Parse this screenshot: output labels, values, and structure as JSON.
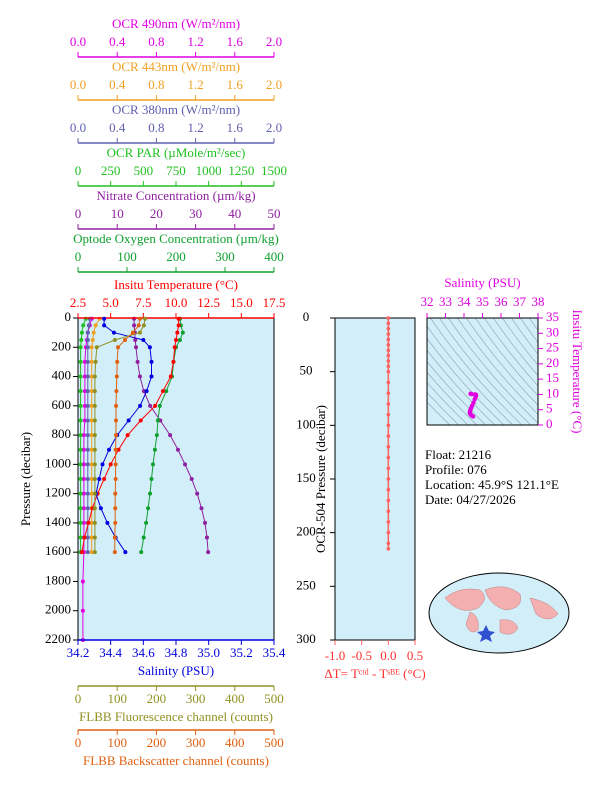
{
  "chart_data": [
    {
      "type": "line",
      "ylabel": "Pressure (decibar)",
      "ylim": [
        0,
        2200
      ],
      "yticks": [
        0,
        200,
        400,
        600,
        800,
        1000,
        1200,
        1400,
        1600,
        1800,
        2000,
        2200
      ],
      "y": [
        5,
        50,
        100,
        150,
        200,
        300,
        400,
        500,
        600,
        700,
        800,
        900,
        1000,
        1100,
        1200,
        1300,
        1400,
        1500,
        1600,
        1800,
        2000,
        2200
      ],
      "series": [
        {
          "label": "OCR 490nm (W/m²/nm)",
          "side": "top",
          "color": "#e000e0",
          "xlim": [
            0,
            2
          ],
          "xticks": [
            {
              "value": 0,
              "label": "0.0"
            },
            0.4,
            0.8,
            1.2,
            1.6,
            {
              "value": 2,
              "label": "2.0"
            }
          ],
          "values": [
            0.14,
            0.12,
            0.1,
            0.09,
            0.08,
            0.07,
            0.07,
            0.07,
            0.07,
            0.07,
            0.06,
            0.06,
            0.06,
            0.06,
            0.06,
            0.06,
            0.06,
            0.06,
            0.06,
            0.05,
            0.05,
            0.05
          ]
        },
        {
          "label": "OCR 443nm (W/m²/nm)",
          "side": "top",
          "color": "#f0a020",
          "xlim": [
            0,
            2
          ],
          "xticks": [
            {
              "value": 0,
              "label": "0.0"
            },
            0.4,
            0.8,
            1.2,
            1.6,
            {
              "value": 2,
              "label": "2.0"
            }
          ],
          "values": [
            0.22,
            0.18,
            0.16,
            0.15,
            0.14,
            0.14,
            0.14,
            0.14,
            0.14,
            0.14,
            0.14,
            0.14,
            0.14,
            0.14,
            0.14,
            0.14,
            0.14,
            0.14,
            0.14,
            null,
            null,
            null
          ]
        },
        {
          "label": "OCR 380nm (W/m²/nm)",
          "side": "top",
          "color": "#6060b0",
          "xlim": [
            0,
            2
          ],
          "xticks": [
            {
              "value": 0,
              "label": "0.0"
            },
            0.4,
            0.8,
            1.2,
            1.6,
            {
              "value": 2,
              "label": "2.0"
            }
          ],
          "values": [
            0.12,
            0.11,
            0.1,
            0.1,
            0.1,
            0.1,
            0.1,
            0.1,
            0.1,
            0.1,
            0.1,
            0.1,
            0.1,
            0.1,
            0.1,
            0.1,
            0.1,
            0.1,
            0.1,
            null,
            null,
            null
          ]
        },
        {
          "label": "OCR PAR (µMole/m²/sec)",
          "side": "top",
          "color": "#20c020",
          "xlim": [
            0,
            1500
          ],
          "xticks": [
            0,
            250,
            500,
            750,
            1000,
            1250,
            1500
          ],
          "values": [
            60,
            40,
            30,
            25,
            20,
            20,
            20,
            20,
            20,
            20,
            20,
            20,
            20,
            20,
            20,
            20,
            20,
            20,
            20,
            null,
            null,
            null
          ]
        },
        {
          "label": "Nitrate Concentration (µm/kg)",
          "side": "top",
          "color": "#9020a0",
          "xlim": [
            0,
            50
          ],
          "xticks": [
            0,
            10,
            20,
            30,
            40,
            50
          ],
          "values": [
            14.3,
            14.3,
            14.5,
            14.6,
            14.8,
            15.2,
            15.8,
            16.8,
            18.4,
            21,
            23.5,
            25.5,
            27.3,
            29,
            30.4,
            31.5,
            32.4,
            32.9,
            33.2,
            null,
            null,
            null
          ]
        },
        {
          "label": "Optode Oxygen Concentration (µm/kg)",
          "side": "top",
          "color": "#10a030",
          "xlim": [
            0,
            400
          ],
          "xticks": [
            0,
            100,
            200,
            300,
            400
          ],
          "values": [
            208,
            210,
            214,
            208,
            200,
            195,
            192,
            180,
            167,
            163,
            161,
            157,
            153,
            150,
            147,
            143,
            139,
            134,
            129,
            null,
            null,
            null
          ]
        },
        {
          "label": "Insitu Temperature (°C)",
          "side": "top",
          "color": "#ff0000",
          "xlim": [
            2.5,
            17.5
          ],
          "xticks": [
            2.5,
            {
              "value": 5,
              "label": "5.0"
            },
            7.5,
            {
              "value": 10,
              "label": "10.0"
            },
            12.5,
            {
              "value": 15,
              "label": "15.0"
            },
            17.5
          ],
          "values": [
            10.2,
            10.2,
            10.1,
            10,
            9.9,
            9.8,
            9.6,
            9.0,
            8.4,
            7.3,
            6.3,
            5.6,
            5.0,
            4.5,
            4.0,
            3.6,
            3.3,
            3.0,
            2.8,
            null,
            null,
            null
          ]
        },
        {
          "label": "Salinity (PSU)",
          "side": "bottom",
          "color": "#0000e0",
          "xlim": [
            34.2,
            35.4
          ],
          "xticks": [
            34.2,
            34.4,
            34.6,
            34.8,
            {
              "value": 35,
              "label": "35.0"
            },
            35.2,
            35.4
          ],
          "values": [
            34.36,
            34.36,
            34.42,
            34.6,
            34.64,
            34.65,
            34.65,
            34.62,
            34.58,
            34.51,
            34.44,
            34.39,
            34.35,
            34.33,
            34.31,
            34.34,
            34.38,
            34.43,
            34.49,
            null,
            null,
            null
          ]
        },
        {
          "label": "FLBB Fluorescence channel (counts)",
          "side": "bottom",
          "color": "#909020",
          "xlim": [
            0,
            500
          ],
          "xticks": [
            0,
            100,
            200,
            300,
            400,
            500
          ],
          "values": [
            171,
            168,
            158,
            94,
            48,
            45,
            43,
            43,
            43,
            43,
            43,
            43,
            43,
            43,
            43,
            43,
            43,
            43,
            43,
            null,
            null,
            null
          ]
        },
        {
          "label": "FLBB Backscatter channel (counts)",
          "side": "bottom",
          "color": "#e06010",
          "xlim": [
            0,
            500
          ],
          "xticks": [
            0,
            100,
            200,
            300,
            400,
            500
          ],
          "values": [
            158,
            155,
            140,
            120,
            102,
            100,
            99,
            98,
            97,
            97,
            97,
            96,
            96,
            96,
            95,
            95,
            95,
            94,
            94,
            null,
            null,
            null
          ]
        }
      ]
    },
    {
      "type": "line",
      "xlabel": "ΔT= Tᶜᵗᵈ - Tˢᴮᴱ (°C)",
      "ylabel": "OCR-504 Pressure (decibar)",
      "color": "#ff6060",
      "xlim": [
        -1,
        0.5
      ],
      "xticks": [
        {
          "value": -1,
          "label": "-1.0"
        },
        -0.5,
        {
          "value": 0,
          "label": "0.0"
        },
        0.5
      ],
      "ylim": [
        0,
        300
      ],
      "yticks": [
        0,
        50,
        100,
        150,
        200,
        250,
        300
      ],
      "y": [
        0,
        5,
        10,
        15,
        20,
        25,
        30,
        35,
        40,
        45,
        50,
        60,
        70,
        80,
        90,
        100,
        110,
        120,
        130,
        140,
        150,
        160,
        170,
        180,
        190,
        200,
        210,
        215
      ],
      "values": [
        0,
        0,
        0,
        0,
        0,
        0,
        0,
        0,
        0,
        0,
        0,
        0,
        0,
        0,
        0,
        0,
        0,
        0,
        0,
        0,
        0,
        0,
        0,
        0,
        0,
        0,
        0,
        0
      ]
    },
    {
      "type": "scatter",
      "xlabel": "Salinity (PSU)",
      "ylabel": "Insitu Temperature (°C)",
      "color": "#e000e0",
      "xlim": [
        32,
        38
      ],
      "xticks": [
        32,
        33,
        34,
        35,
        36,
        37,
        38
      ],
      "ylim": [
        0,
        35
      ],
      "yticks": [
        0,
        5,
        10,
        15,
        20,
        25,
        30,
        35
      ]
    }
  ],
  "info": [
    "Float:  21216",
    "Profile:  076",
    "Location:  45.9°S  121.1°E",
    "Date:  04/27/2026"
  ]
}
